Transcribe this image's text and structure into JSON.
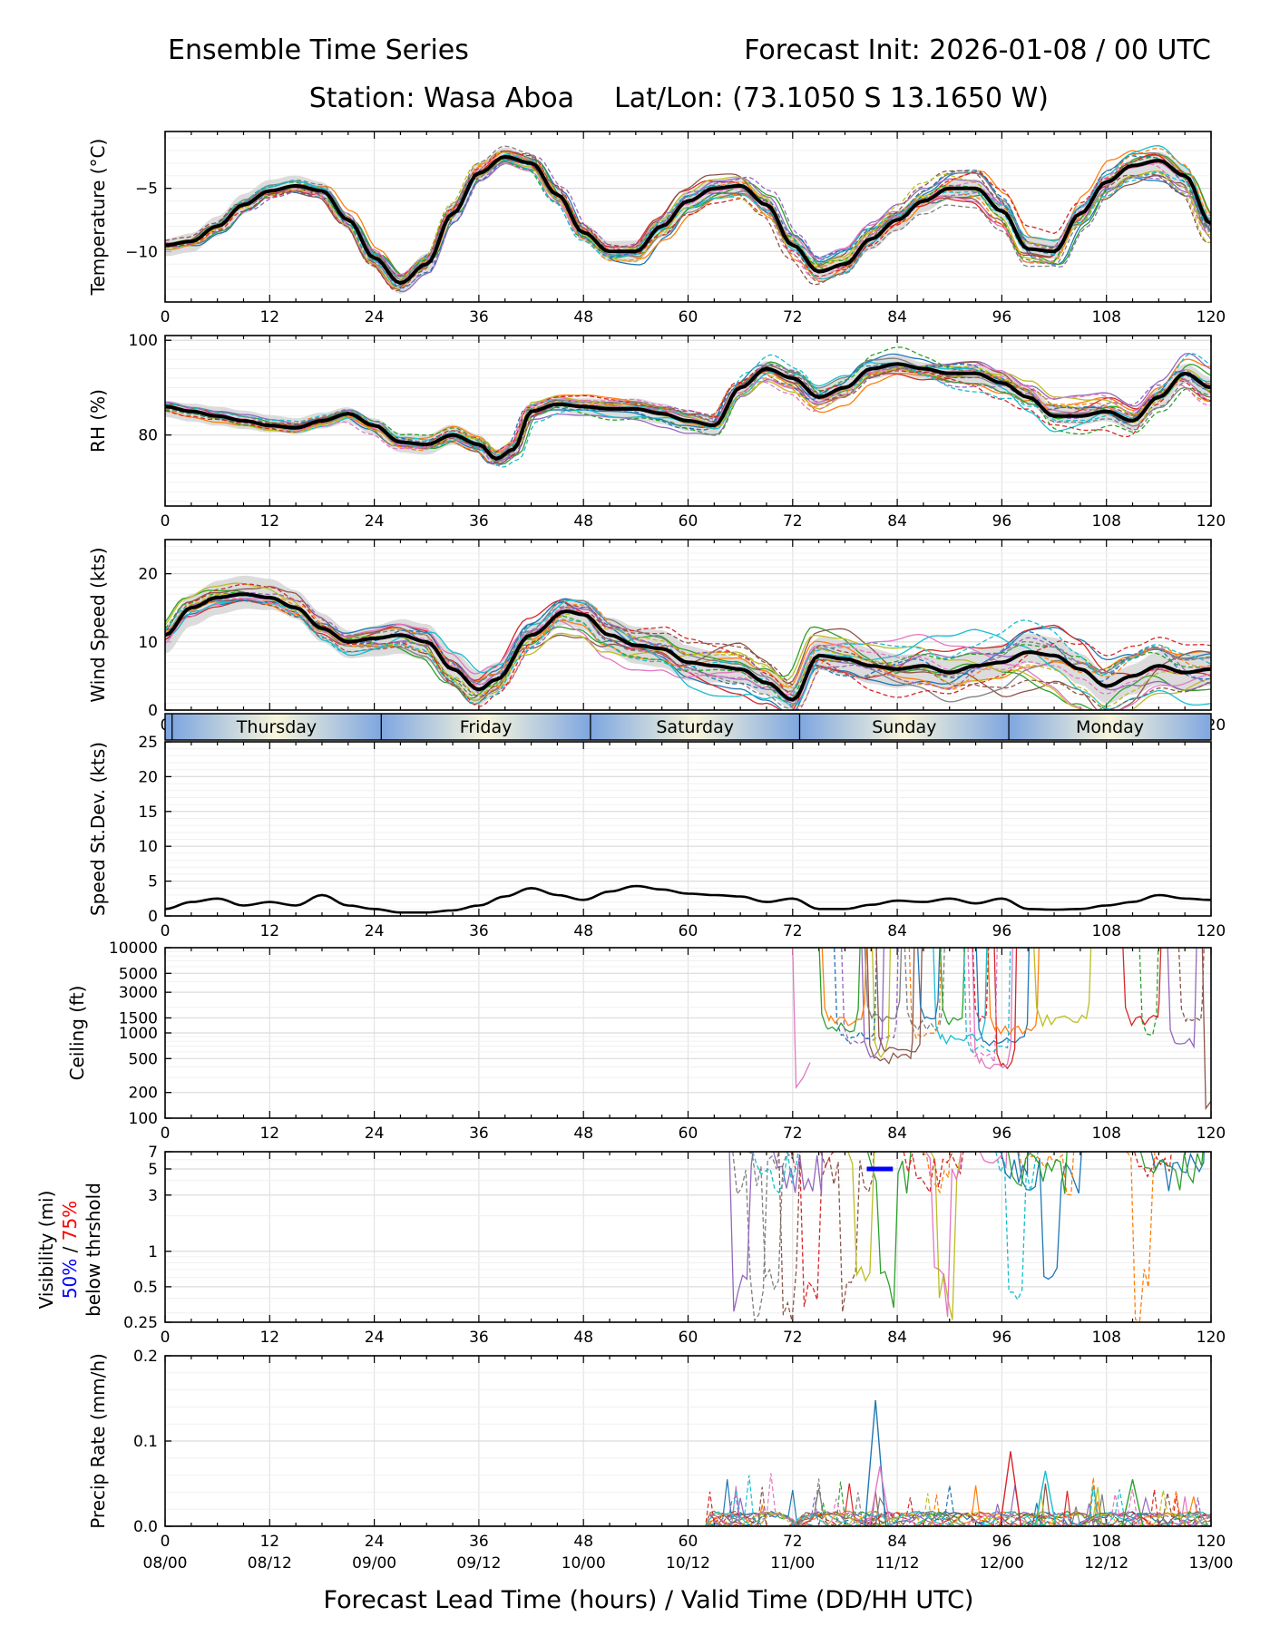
{
  "header": {
    "title_left": "Ensemble Time Series",
    "title_right": "Forecast Init: 2026-01-08 / 00 UTC",
    "station": "Station: Wasa Aboa",
    "latlon": "Lat/Lon: (73.1050 S 13.1650 W)"
  },
  "days": [
    "Thursday",
    "Friday",
    "Saturday",
    "Sunday",
    "Monday"
  ],
  "xaxis": {
    "lead_ticks": [
      "0",
      "12",
      "24",
      "36",
      "48",
      "60",
      "72",
      "84",
      "96",
      "108",
      "120"
    ],
    "valid_ticks": [
      "08/00",
      "08/12",
      "09/00",
      "09/12",
      "10/00",
      "10/12",
      "11/00",
      "11/12",
      "12/00",
      "12/12",
      "13/00"
    ],
    "label": "Forecast Lead Time (hours) / Valid Time (DD/HH UTC)"
  },
  "visibility_legend": {
    "label_top": "Visibility (mi)",
    "p50": "50%",
    "sep": " / ",
    "p75": "75%",
    "label_bottom": "below thrshold",
    "p50_color": "#0000ff",
    "p75_color": "#ff0000"
  },
  "colors": {
    "members": [
      "#1f77b4",
      "#ff7f0e",
      "#2ca02c",
      "#d62728",
      "#9467bd",
      "#8c564b",
      "#e377c2",
      "#7f7f7f",
      "#bcbd22",
      "#17becf"
    ],
    "mean": "#000000",
    "spread": "#d3d3d3",
    "day_blue": "#7ea6e0",
    "day_cream": "#f8f6dc"
  },
  "chart_data": [
    {
      "id": "temperature",
      "type": "line",
      "ylabel": "Temperature (°C)",
      "ylim": [
        -14,
        -0.5
      ],
      "yticks": [
        -10,
        -5
      ],
      "ytick_labels": [
        "−10",
        "−5"
      ],
      "x": [
        0,
        3,
        6,
        9,
        12,
        15,
        18,
        21,
        24,
        27,
        30,
        33,
        36,
        39,
        42,
        45,
        48,
        51,
        54,
        57,
        60,
        63,
        66,
        69,
        72,
        75,
        78,
        81,
        84,
        87,
        90,
        93,
        96,
        99,
        102,
        105,
        108,
        111,
        114,
        117,
        120
      ],
      "mean": [
        -9.5,
        -9.2,
        -8.0,
        -6.3,
        -5.2,
        -4.8,
        -5.2,
        -7.5,
        -10.5,
        -12.5,
        -11.0,
        -7.0,
        -3.8,
        -2.5,
        -3.0,
        -5.5,
        -8.5,
        -10.0,
        -10.0,
        -8.0,
        -6.0,
        -5.0,
        -4.8,
        -6.3,
        -9.5,
        -11.6,
        -11.0,
        -9.0,
        -7.5,
        -6.0,
        -5.0,
        -5.0,
        -6.8,
        -9.8,
        -10.0,
        -7.0,
        -4.5,
        -3.2,
        -2.8,
        -4.0,
        -7.8
      ],
      "spread": 0.8
    },
    {
      "id": "rh",
      "type": "line",
      "ylabel": "RH (%)",
      "ylim": [
        65,
        101
      ],
      "yticks": [
        80,
        100
      ],
      "ytick_labels": [
        "80",
        "100"
      ],
      "x": [
        0,
        3,
        6,
        9,
        12,
        15,
        18,
        21,
        24,
        27,
        30,
        33,
        36,
        38,
        40,
        42,
        45,
        48,
        51,
        54,
        57,
        60,
        63,
        66,
        69,
        72,
        75,
        78,
        81,
        84,
        87,
        90,
        93,
        96,
        99,
        102,
        105,
        108,
        111,
        114,
        117,
        120
      ],
      "mean": [
        86,
        85,
        84,
        83,
        82,
        81.5,
        83,
        84.5,
        82,
        78.5,
        78,
        80,
        78,
        75,
        77,
        85,
        86.5,
        86,
        85.5,
        85.5,
        84.5,
        83,
        82,
        90,
        94,
        92,
        88,
        90,
        94,
        95,
        94,
        93,
        93,
        91,
        88,
        84,
        84,
        85,
        83,
        88,
        93,
        90
      ],
      "spread": 2.0
    },
    {
      "id": "wind_speed",
      "type": "line",
      "ylabel": "Wind Speed (kts)",
      "ylim": [
        0,
        25
      ],
      "yticks": [
        0,
        10,
        20
      ],
      "ytick_labels": [
        "0",
        "10",
        "20"
      ],
      "x": [
        0,
        3,
        6,
        9,
        12,
        15,
        18,
        21,
        24,
        27,
        30,
        33,
        36,
        38,
        42,
        46,
        48,
        51,
        54,
        57,
        60,
        63,
        66,
        69,
        72,
        75,
        78,
        81,
        84,
        87,
        90,
        93,
        96,
        99,
        102,
        105,
        108,
        111,
        114,
        117,
        120
      ],
      "mean": [
        11,
        15,
        16.5,
        17,
        16.5,
        15,
        12,
        10,
        10.5,
        11,
        10,
        6,
        3,
        4.5,
        11,
        14.5,
        14,
        11,
        9.5,
        9,
        7,
        6.5,
        6,
        4,
        1.5,
        8,
        7.5,
        6.5,
        6,
        6.5,
        5.5,
        6.5,
        7,
        8.5,
        8,
        6,
        3.5,
        5,
        6.5,
        5.5,
        6
      ],
      "spread": 2.5
    },
    {
      "id": "speed_stdev",
      "type": "line",
      "ylabel": "Speed St.Dev. (kts)",
      "ylim": [
        0,
        25
      ],
      "yticks": [
        0,
        5,
        10,
        15,
        20,
        25
      ],
      "ytick_labels": [
        "0",
        "5",
        "10",
        "15",
        "20",
        "25"
      ],
      "x": [
        0,
        3,
        6,
        9,
        12,
        15,
        18,
        21,
        24,
        27,
        30,
        33,
        36,
        39,
        42,
        45,
        48,
        51,
        54,
        57,
        60,
        63,
        66,
        69,
        72,
        75,
        78,
        81,
        84,
        87,
        90,
        93,
        96,
        99,
        102,
        105,
        108,
        111,
        114,
        117,
        120
      ],
      "values": [
        1.0,
        2.0,
        2.5,
        1.5,
        2.0,
        1.5,
        3.0,
        1.5,
        1.0,
        0.5,
        0.5,
        0.8,
        1.5,
        2.8,
        4.0,
        3.0,
        2.3,
        3.5,
        4.3,
        3.8,
        3.2,
        3.0,
        2.8,
        2.0,
        2.5,
        1.0,
        1.0,
        1.6,
        2.2,
        2.0,
        2.5,
        1.8,
        2.5,
        1.0,
        0.9,
        1.0,
        1.5,
        2.0,
        3.0,
        2.5,
        2.3
      ]
    },
    {
      "id": "ceiling",
      "type": "line",
      "scale": "log",
      "ylabel": "Ceiling (ft)",
      "ylim": [
        100,
        10000
      ],
      "yticks": [
        100,
        200,
        500,
        1000,
        1500,
        3000,
        5000,
        10000
      ],
      "ytick_labels": [
        "100",
        "200",
        "500",
        "1000",
        "1500",
        "3000",
        "5000",
        "10000"
      ],
      "active_range_hours": [
        [
          71.5,
          103
        ],
        [
          108,
          120
        ]
      ],
      "typical_range_ft": [
        400,
        1500
      ],
      "min_ft": 130
    },
    {
      "id": "visibility",
      "type": "line",
      "scale": "log",
      "ylim": [
        0.25,
        7
      ],
      "yticks": [
        0.25,
        0.5,
        1,
        3,
        5,
        7
      ],
      "ytick_labels": [
        "0.25",
        "0.5",
        "1",
        "3",
        "5",
        "7"
      ],
      "active_range_hours": [
        [
          64,
          103
        ],
        [
          110,
          120
        ]
      ],
      "p50_threshold_segment": {
        "x": [
          80.5,
          83.5
        ],
        "y": 5
      }
    },
    {
      "id": "precip_rate",
      "type": "line",
      "ylabel": "Precip Rate (mm/h)",
      "ylim": [
        0,
        0.2
      ],
      "yticks": [
        0.0,
        0.1,
        0.2
      ],
      "ytick_labels": [
        "0.0",
        "0.1",
        "0.2"
      ],
      "peaks": [
        {
          "x": 81.5,
          "y": 0.148
        },
        {
          "x": 97,
          "y": 0.088
        },
        {
          "x": 82,
          "y": 0.07
        },
        {
          "x": 101,
          "y": 0.065
        },
        {
          "x": 111,
          "y": 0.055
        }
      ]
    }
  ]
}
